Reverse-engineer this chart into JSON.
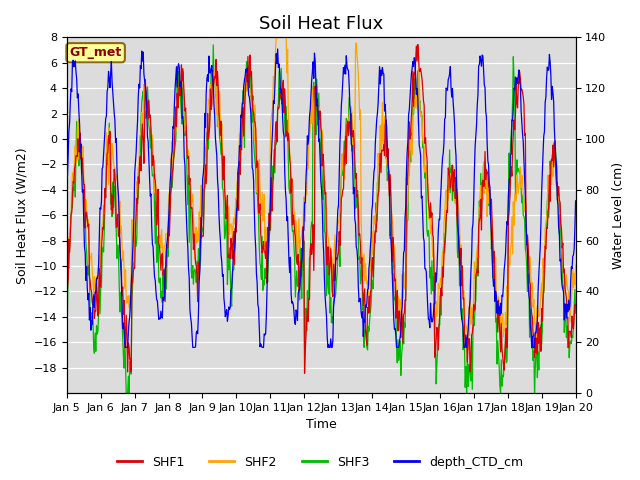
{
  "title": "Soil Heat Flux",
  "xlabel": "Time",
  "ylabel_left": "Soil Heat Flux (W/m2)",
  "ylabel_right": "Water Level (cm)",
  "ylim_left": [
    -20,
    8
  ],
  "ylim_right": [
    0,
    140
  ],
  "yticks_left": [
    -18,
    -16,
    -14,
    -12,
    -10,
    -8,
    -6,
    -4,
    -2,
    0,
    2,
    4,
    6,
    8
  ],
  "yticks_right": [
    0,
    20,
    40,
    60,
    80,
    100,
    120,
    140
  ],
  "xtick_labels": [
    "Jan 5",
    "Jan 6",
    "Jan 7",
    "Jan 8",
    "Jan 9",
    "Jan 10",
    "Jan 11",
    "Jan 12",
    "Jan 13",
    "Jan 14",
    "Jan 15",
    "Jan 16",
    "Jan 17",
    "Jan 18",
    "Jan 19",
    "Jan 20"
  ],
  "annotation_text": "GT_met",
  "annotation_color": "#8B0000",
  "annotation_bg": "#FFFF99",
  "annotation_border": "#8B6914",
  "colors": {
    "SHF1": "#DD0000",
    "SHF2": "#FFA500",
    "SHF3": "#00BB00",
    "depth_CTD_cm": "#0000EE"
  },
  "bg_color": "#DCDCDC",
  "grid_color": "#FFFFFF",
  "title_fontsize": 13,
  "axis_fontsize": 9,
  "tick_fontsize": 8,
  "legend_fontsize": 9
}
